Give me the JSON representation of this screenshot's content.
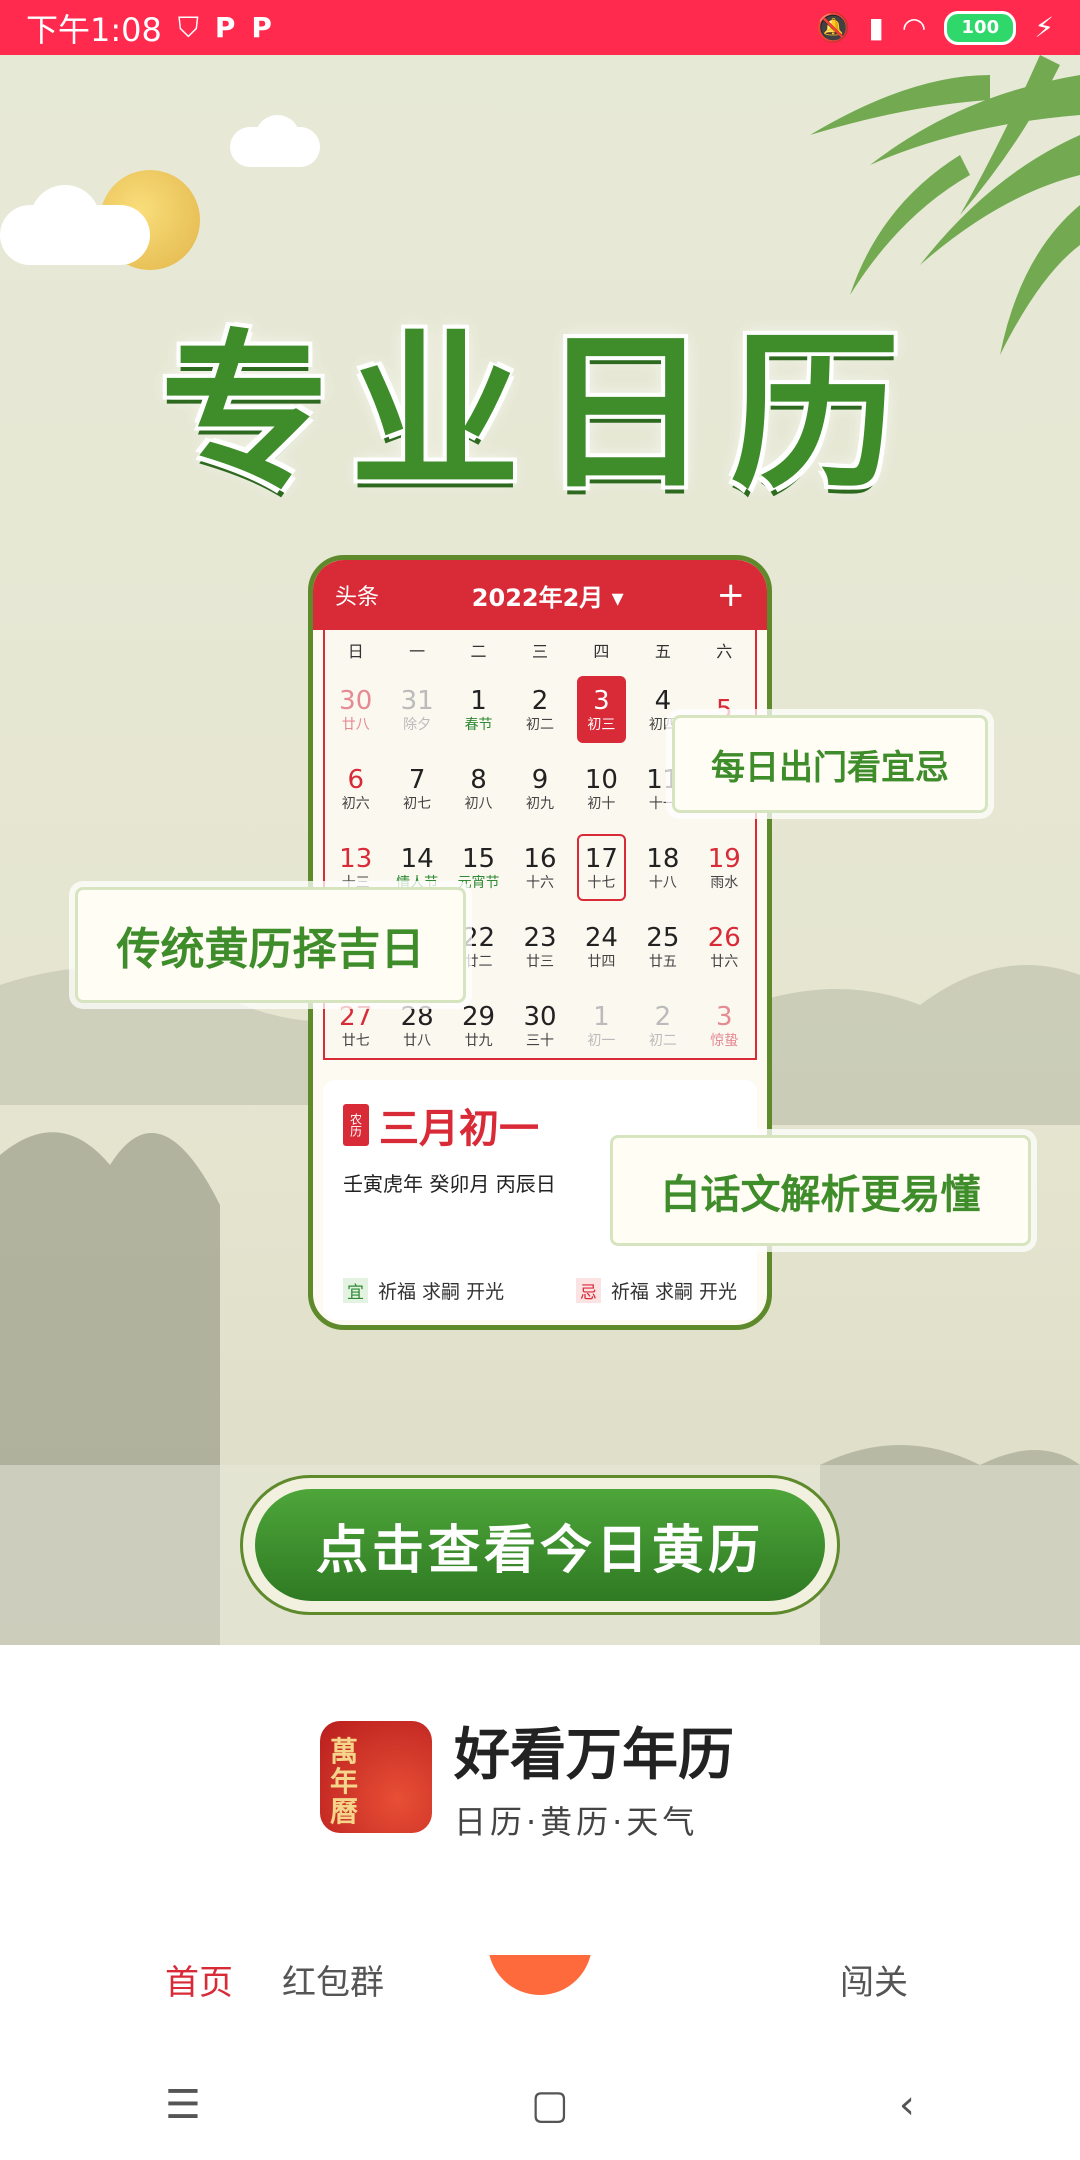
{
  "status_bar": {
    "time": "下午1:08",
    "battery": "100",
    "icons": [
      "shield-icon",
      "p-icon",
      "p-icon",
      "bell-off-icon",
      "signal-icon",
      "wifi-icon",
      "charging-icon"
    ]
  },
  "splash": {
    "headline": "专业日历",
    "phone": {
      "header_left": "头条",
      "month": "2022年2月",
      "header_right": "+",
      "weekdays": [
        "日",
        "一",
        "二",
        "三",
        "四",
        "五",
        "六"
      ],
      "rows": [
        [
          {
            "n": "30",
            "l": "廿八",
            "s": "reddim"
          },
          {
            "n": "31",
            "l": "除夕",
            "s": "dim"
          },
          {
            "n": "1",
            "l": "春节",
            "s": "green"
          },
          {
            "n": "2",
            "l": "初二",
            "s": ""
          },
          {
            "n": "3",
            "l": "初三",
            "s": "today"
          },
          {
            "n": "4",
            "l": "初四",
            "s": ""
          },
          {
            "n": "5",
            "l": "",
            "s": "red"
          }
        ],
        [
          {
            "n": "6",
            "l": "初六",
            "s": "red"
          },
          {
            "n": "7",
            "l": "初七",
            "s": ""
          },
          {
            "n": "8",
            "l": "初八",
            "s": ""
          },
          {
            "n": "9",
            "l": "初九",
            "s": ""
          },
          {
            "n": "10",
            "l": "初十",
            "s": ""
          },
          {
            "n": "11",
            "l": "十一",
            "s": ""
          },
          {
            "n": "",
            "l": "",
            "s": ""
          }
        ],
        [
          {
            "n": "13",
            "l": "十三",
            "s": "red"
          },
          {
            "n": "14",
            "l": "情人节",
            "s": "green"
          },
          {
            "n": "15",
            "l": "元宵节",
            "s": "green"
          },
          {
            "n": "16",
            "l": "十六",
            "s": ""
          },
          {
            "n": "17",
            "l": "十七",
            "s": "sel"
          },
          {
            "n": "18",
            "l": "十八",
            "s": ""
          },
          {
            "n": "19",
            "l": "雨水",
            "s": "red"
          }
        ],
        [
          {
            "n": "",
            "l": "",
            "s": ""
          },
          {
            "n": "",
            "l": "",
            "s": ""
          },
          {
            "n": "22",
            "l": "廿二",
            "s": ""
          },
          {
            "n": "23",
            "l": "廿三",
            "s": ""
          },
          {
            "n": "24",
            "l": "廿四",
            "s": ""
          },
          {
            "n": "25",
            "l": "廿五",
            "s": ""
          },
          {
            "n": "26",
            "l": "廿六",
            "s": "red"
          }
        ],
        [
          {
            "n": "27",
            "l": "廿七",
            "s": "red"
          },
          {
            "n": "28",
            "l": "廿八",
            "s": ""
          },
          {
            "n": "29",
            "l": "廿九",
            "s": ""
          },
          {
            "n": "30",
            "l": "三十",
            "s": ""
          },
          {
            "n": "1",
            "l": "初一",
            "s": "dim"
          },
          {
            "n": "2",
            "l": "初二",
            "s": "dim"
          },
          {
            "n": "3",
            "l": "惊蛰",
            "s": "reddim"
          }
        ]
      ],
      "nongli_tag": "农历",
      "lunar_date": "三月初一",
      "ganzhi": "壬寅虎年  癸卯月  丙辰日",
      "yi_label": "宜",
      "yi_items": "祈福  求嗣  开光",
      "ji_label": "忌",
      "ji_items": "祈福  求嗣  开光"
    },
    "bubble_1": "每日出门看宜忌",
    "bubble_2": "传统黄历择吉日",
    "bubble_3": "白话文解析更易懂",
    "cta": "点击查看今日黄历"
  },
  "brand": {
    "logo_text": "萬年曆",
    "name": "好看万年历",
    "subtitle": "日历·黄历·天气"
  },
  "bottom_tabs": {
    "home": "首页",
    "group": "红包群",
    "discover": "闯关"
  }
}
